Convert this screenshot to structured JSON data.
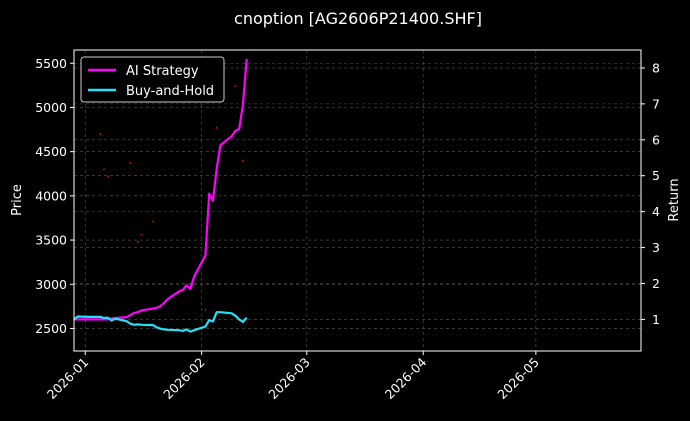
{
  "chart_data": {
    "type": "line",
    "title": "cnoption [AG2606P21400.SHF]",
    "ylabel": "Price",
    "y2label": "Return",
    "background": "#000000",
    "grid": true,
    "legend_position": "top-left",
    "xlim": [
      "2025-12-29",
      "2026-05-29"
    ],
    "ylim_left": [
      2245,
      5650
    ],
    "ylim_right": [
      0.12,
      8.5
    ],
    "x_ticks": [
      "2026-01",
      "2026-02",
      "2026-03",
      "2026-04",
      "2026-05"
    ],
    "x_tick_dates": [
      "2026-01-01",
      "2026-02-01",
      "2026-03-01",
      "2026-04-01",
      "2026-05-01"
    ],
    "y_left_ticks": [
      2500,
      3000,
      3500,
      4000,
      4500,
      5000,
      5500
    ],
    "y_right_ticks": [
      1,
      2,
      3,
      4,
      5,
      6,
      7,
      8
    ],
    "series": [
      {
        "name": "AI Strategy",
        "color": "#ff00ff",
        "axis": "right",
        "x": [
          "2025-12-29",
          "2025-12-30",
          "2026-01-02",
          "2026-01-05",
          "2026-01-06",
          "2026-01-07",
          "2026-01-08",
          "2026-01-09",
          "2026-01-12",
          "2026-01-13",
          "2026-01-14",
          "2026-01-15",
          "2026-01-16",
          "2026-01-19",
          "2026-01-20",
          "2026-01-21",
          "2026-01-22",
          "2026-01-23",
          "2026-01-26",
          "2026-01-27",
          "2026-01-28",
          "2026-01-29",
          "2026-01-30",
          "2026-02-02",
          "2026-02-03",
          "2026-02-04",
          "2026-02-05",
          "2026-02-06",
          "2026-02-09",
          "2026-02-10",
          "2026-02-11",
          "2026-02-12",
          "2026-02-13"
        ],
        "values": [
          1.0,
          1.0,
          1.0,
          1.0,
          1.0,
          1.0,
          1.03,
          1.04,
          1.06,
          1.12,
          1.18,
          1.2,
          1.25,
          1.3,
          1.32,
          1.37,
          1.46,
          1.57,
          1.78,
          1.82,
          1.95,
          1.85,
          2.2,
          2.78,
          4.5,
          4.3,
          5.2,
          5.85,
          6.1,
          6.25,
          6.3,
          7.0,
          8.25
        ]
      },
      {
        "name": "Buy-and-Hold",
        "color": "#22e3f5",
        "axis": "right",
        "x": [
          "2025-12-29",
          "2025-12-30",
          "2026-01-02",
          "2026-01-05",
          "2026-01-06",
          "2026-01-07",
          "2026-01-08",
          "2026-01-09",
          "2026-01-12",
          "2026-01-13",
          "2026-01-14",
          "2026-01-15",
          "2026-01-16",
          "2026-01-19",
          "2026-01-20",
          "2026-01-21",
          "2026-01-22",
          "2026-01-23",
          "2026-01-26",
          "2026-01-27",
          "2026-01-28",
          "2026-01-29",
          "2026-01-30",
          "2026-02-02",
          "2026-02-03",
          "2026-02-04",
          "2026-02-05",
          "2026-02-06",
          "2026-02-09",
          "2026-02-10",
          "2026-02-11",
          "2026-02-12",
          "2026-02-13"
        ],
        "values": [
          1.0,
          1.08,
          1.07,
          1.07,
          1.04,
          1.05,
          0.97,
          1.02,
          0.95,
          0.88,
          0.85,
          0.86,
          0.85,
          0.84,
          0.78,
          0.74,
          0.72,
          0.71,
          0.7,
          0.68,
          0.72,
          0.66,
          0.7,
          0.8,
          0.98,
          0.94,
          1.2,
          1.2,
          1.17,
          1.1,
          1.0,
          0.93,
          1.05
        ]
      }
    ],
    "scatter_points": {
      "color": "#cc0022",
      "axis": "left",
      "x": [
        "2026-01-05",
        "2026-01-06",
        "2026-01-07",
        "2026-01-13",
        "2026-01-15",
        "2026-01-16",
        "2026-01-19",
        "2026-02-02",
        "2026-02-05",
        "2026-02-10",
        "2026-02-12"
      ],
      "values": [
        4700,
        4300,
        4220,
        4370,
        3480,
        3560,
        3710,
        2710,
        4770,
        5240,
        4400
      ]
    }
  }
}
